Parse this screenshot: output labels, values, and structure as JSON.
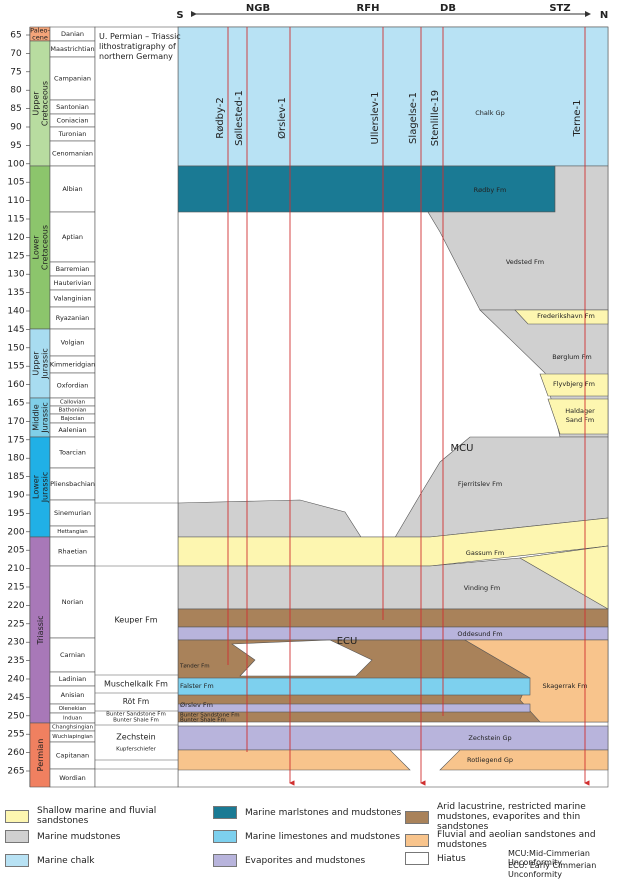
{
  "header": {
    "south": "S",
    "north": "N",
    "regions": [
      "NGB",
      "RFH",
      "DB",
      "STZ"
    ]
  },
  "age_axis": {
    "ticks": [
      65,
      70,
      75,
      80,
      85,
      90,
      95,
      100,
      105,
      110,
      115,
      120,
      125,
      130,
      135,
      140,
      145,
      150,
      155,
      160,
      165,
      170,
      175,
      180,
      185,
      190,
      195,
      200,
      205,
      210,
      215,
      220,
      225,
      230,
      235,
      240,
      245,
      250,
      255,
      260,
      265
    ]
  },
  "periods": [
    {
      "label": [
        "Paleo-",
        "cene"
      ]
    },
    {
      "label": [
        "Upper",
        "Cretaceous"
      ]
    },
    {
      "label": [
        "Lower",
        "Cretaceous"
      ]
    },
    {
      "label": [
        "Upper",
        "Jurassic"
      ]
    },
    {
      "label": [
        "Middle",
        "Jurassic"
      ]
    },
    {
      "label": [
        "Lower",
        "Jurassic"
      ]
    },
    {
      "label": [
        "Triassic"
      ]
    },
    {
      "label": [
        "Permian"
      ]
    }
  ],
  "stages": [
    "Danian",
    "Maastrichtian",
    "Campanian",
    "Santonian",
    "Coniacian",
    "Turonian",
    "Cenomanian",
    "Albian",
    "Aptian",
    "Barremian",
    "Hauterivian",
    "Valanginian",
    "Ryazanian",
    "Volgian",
    "Kimmeridgian",
    "Oxfordian",
    "Callovian",
    "Bathonian",
    "Bajocian",
    "Aalenian",
    "Toarcian",
    "Pliensbachian",
    "Sinemurian",
    "Hettangian",
    "Rhaetian",
    "Norian",
    "Carnian",
    "Ladinian",
    "Anisian",
    "Olenekian",
    "Induan",
    "Changhsingian",
    "Wuchiapingian",
    "Capitanan",
    "Wordian"
  ],
  "lithostratigraphy": {
    "title": [
      "U. Permian – Triassic",
      "lithostratigraphy of",
      "northern Germany"
    ],
    "units": [
      "Keuper Fm",
      "Muschelkalk Fm",
      "Röt Fm",
      "Bunter Sandstone Fm",
      "Bunter Shale Fm",
      "Zechstein",
      "Kupferschiefer"
    ]
  },
  "wells": [
    "Rødby-2",
    "Søllested-1",
    "Ørslev-1",
    "Ullerslev-1",
    "Slagelse-1",
    "Stenlille-19",
    "Terne-1"
  ],
  "formations": [
    "Chalk Gp",
    "Rødby Fm",
    "Vedsted Fm",
    "Frederikshavn Fm",
    "Børglum Fm",
    "Flyvbjerg Fm",
    [
      "Haldager",
      "Sand Fm"
    ],
    "Fjerritslev Fm",
    "Gassum Fm",
    "Vinding Fm",
    "Oddesund Fm",
    "Skagerrak Fm",
    "Tønder Fm",
    "Falster Fm",
    "Ørslev Fm",
    "Bunter Sandstone Fm",
    "Bunter Shale Fm",
    "Zechstein Gp",
    "Rotliegend Gp"
  ],
  "unconformities": [
    "MCU",
    "ECU"
  ],
  "legend": {
    "items": [
      "Shallow marine and fluvial sandstones",
      "Marine mudstones",
      "Marine chalk",
      "Marine marlstones and mudstones",
      "Marine limestones and mudstones",
      "Evaporites and mudstones",
      "Arid lacustrine, restricted marine mudstones, evaporites and thin sandstones",
      "Fluvial and aeolian sandstones and mudstones",
      "Hiatus"
    ],
    "notes": [
      "MCU:Mid-Cimmerian Unconformity",
      "ECU: Early Cimmerian Unconformity"
    ]
  }
}
